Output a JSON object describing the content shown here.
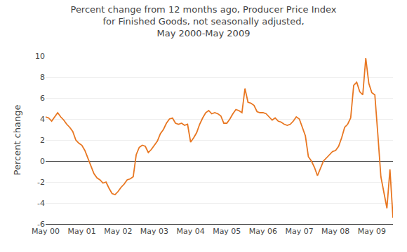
{
  "chart_data": {
    "type": "line",
    "title": "Percent change from 12 months ago, Producer Price Index\nfor Finished Goods, not seasonally adjusted,\nMay 2000-May 2009",
    "ylabel": "Percent change",
    "color": "#E87722",
    "ylim": [
      -6,
      10
    ],
    "yticks": [
      -6,
      -4,
      -2,
      0,
      2,
      4,
      6,
      8,
      10
    ],
    "grid": true,
    "categories": [
      "May 00",
      null,
      null,
      null,
      null,
      null,
      null,
      null,
      null,
      null,
      null,
      null,
      "May 01",
      null,
      null,
      null,
      null,
      null,
      null,
      null,
      null,
      null,
      null,
      null,
      "May 02",
      null,
      null,
      null,
      null,
      null,
      null,
      null,
      null,
      null,
      null,
      null,
      "May 03",
      null,
      null,
      null,
      null,
      null,
      null,
      null,
      null,
      null,
      null,
      null,
      "May 04",
      null,
      null,
      null,
      null,
      null,
      null,
      null,
      null,
      null,
      null,
      null,
      "May 05",
      null,
      null,
      null,
      null,
      null,
      null,
      null,
      null,
      null,
      null,
      null,
      "May 06",
      null,
      null,
      null,
      null,
      null,
      null,
      null,
      null,
      null,
      null,
      null,
      "May 07",
      null,
      null,
      null,
      null,
      null,
      null,
      null,
      null,
      null,
      null,
      null,
      "May 08",
      null,
      null,
      null,
      null,
      null,
      null,
      null,
      null,
      null,
      null,
      null,
      "May 09",
      null,
      null,
      null,
      null,
      null,
      null,
      null
    ],
    "values": [
      4.2,
      4.1,
      3.8,
      4.2,
      4.6,
      4.2,
      3.9,
      3.5,
      3.2,
      2.8,
      2.0,
      1.7,
      1.5,
      1.0,
      0.3,
      -0.4,
      -1.2,
      -1.6,
      -1.8,
      -2.1,
      -2.0,
      -2.6,
      -3.1,
      -3.2,
      -2.9,
      -2.5,
      -2.2,
      -1.8,
      -1.7,
      -1.5,
      0.6,
      1.3,
      1.5,
      1.4,
      0.8,
      1.1,
      1.5,
      1.9,
      2.6,
      3.0,
      3.6,
      4.0,
      4.1,
      3.6,
      3.5,
      3.6,
      3.4,
      3.5,
      1.8,
      2.2,
      2.7,
      3.5,
      4.1,
      4.6,
      4.8,
      4.5,
      4.6,
      4.5,
      4.3,
      3.6,
      3.6,
      4.0,
      4.5,
      4.9,
      4.8,
      4.6,
      6.9,
      5.6,
      5.5,
      5.3,
      4.7,
      4.6,
      4.6,
      4.5,
      4.2,
      3.9,
      4.1,
      3.8,
      3.7,
      3.5,
      3.4,
      3.5,
      3.8,
      4.2,
      4.0,
      3.2,
      2.4,
      0.4,
      0.0,
      -0.6,
      -1.4,
      -0.7,
      0.0,
      0.3,
      0.6,
      0.9,
      1.0,
      1.4,
      2.2,
      3.2,
      3.5,
      4.1,
      7.2,
      7.5,
      6.6,
      6.3,
      9.8,
      7.4,
      6.5,
      6.3,
      2.5,
      -1.5,
      -3.0,
      -4.5,
      -0.8,
      -5.4
    ]
  }
}
